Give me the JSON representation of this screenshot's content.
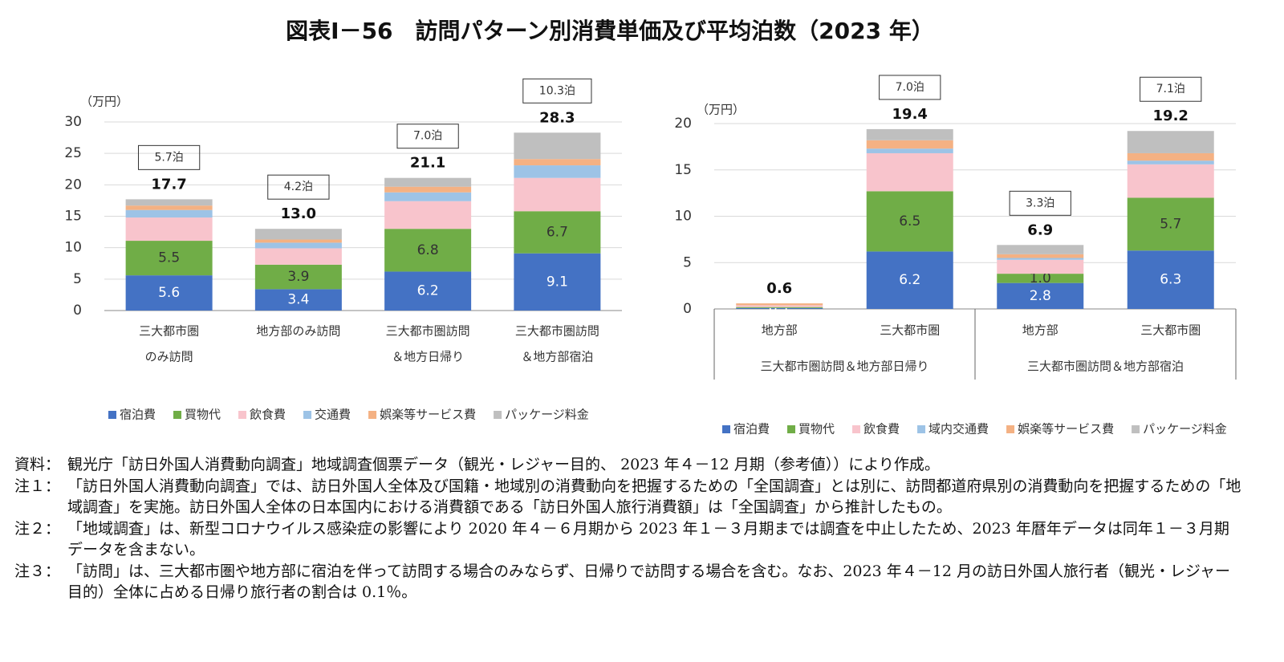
{
  "title": "図表Ⅰ－56　訪問パターン別消費単価及び平均泊数（2023 年）",
  "chart_data": [
    {
      "type": "bar",
      "stacked": true,
      "y_label": "（万円）",
      "grid": true,
      "categories": [
        [
          "三大都市圏",
          "のみ訪問"
        ],
        [
          "地方部のみ訪問"
        ],
        [
          "三大都市圏訪問",
          "＆地方日帰り"
        ],
        [
          "三大都市圏訪問",
          "＆地方部宿泊"
        ]
      ],
      "ylim": [
        0,
        30
      ],
      "yticks": [
        0,
        5,
        10,
        15,
        20,
        25,
        30
      ],
      "series": [
        {
          "name": "宿泊費",
          "color": "#4472c4",
          "values": [
            5.6,
            3.4,
            6.2,
            9.1
          ]
        },
        {
          "name": "買物代",
          "color": "#70ad47",
          "values": [
            5.5,
            3.9,
            6.8,
            6.7
          ]
        },
        {
          "name": "飲食費",
          "color": "#f8c4cc",
          "values": [
            3.7,
            2.6,
            4.4,
            5.3
          ]
        },
        {
          "name": "交通費",
          "color": "#9dc3e6",
          "values": [
            1.2,
            0.9,
            1.4,
            2.0
          ]
        },
        {
          "name": "娯楽等サービス費",
          "color": "#f4b183",
          "values": [
            0.7,
            0.5,
            0.9,
            1.0
          ]
        },
        {
          "name": "パッケージ料金",
          "color": "#bfbfbf",
          "values": [
            1.0,
            1.7,
            1.4,
            4.2
          ]
        }
      ],
      "totals": [
        17.7,
        13.0,
        21.1,
        28.3
      ],
      "total_labels": [
        "17.7",
        "13.0",
        "21.1",
        "28.3"
      ],
      "nights": [
        "5.7泊",
        "4.2泊",
        "7.0泊",
        "10.3泊"
      ]
    },
    {
      "type": "bar",
      "stacked": true,
      "y_label": "（万円）",
      "grid": true,
      "categories": [
        [
          "地方部"
        ],
        [
          "三大都市圏"
        ],
        [
          "地方部"
        ],
        [
          "三大都市圏"
        ]
      ],
      "groups": [
        "三大都市圏訪問＆地方部日帰り",
        "三大都市圏訪問＆地方部宿泊"
      ],
      "ylim": [
        0,
        20
      ],
      "yticks": [
        0,
        5,
        10,
        15,
        20
      ],
      "series": [
        {
          "name": "宿泊費",
          "color": "#4472c4",
          "values": [
            0.1,
            6.2,
            2.8,
            6.3
          ]
        },
        {
          "name": "買物代",
          "color": "#70ad47",
          "values": [
            0.1,
            6.5,
            1.0,
            5.7
          ],
          "value_labels": [
            null,
            "6.5",
            "1.0",
            "5.7"
          ]
        },
        {
          "name": "飲食費",
          "color": "#f8c4cc",
          "values": [
            0.2,
            4.1,
            1.5,
            3.6
          ]
        },
        {
          "name": "域内交通費",
          "color": "#9dc3e6",
          "values": [
            0.0,
            0.5,
            0.2,
            0.4
          ]
        },
        {
          "name": "娯楽等サービス費",
          "color": "#f4b183",
          "values": [
            0.2,
            0.9,
            0.4,
            0.8
          ]
        },
        {
          "name": "パッケージ料金",
          "color": "#bfbfbf",
          "values": [
            0.0,
            1.2,
            1.0,
            2.4
          ]
        }
      ],
      "totals": [
        0.6,
        19.4,
        6.9,
        19.2
      ],
      "total_labels": [
        "0.6",
        "19.4",
        "6.9",
        "19.2"
      ],
      "nights": [
        null,
        "7.0泊",
        "3.3泊",
        "7.1泊"
      ]
    }
  ],
  "notes": [
    {
      "label": "資料：",
      "text": "観光庁「訪日外国人消費動向調査」地域調査個票データ（観光・レジャー目的、 2023 年４－12 月期（参考値））により作成。"
    },
    {
      "label": "注１：",
      "text": "「訪日外国人消費動向調査」では、訪日外国人全体及び国籍・地域別の消費動向を把握するための「全国調査」とは別に、訪問都道府県別の消費動向を把握するための「地域調査」を実施。訪日外国人全体の日本国内における消費額である「訪日外国人旅行消費額」は「全国調査」から推計したもの。"
    },
    {
      "label": "注２：",
      "text": "「地域調査」は、新型コロナウイルス感染症の影響により 2020 年４－６月期から 2023 年１－３月期までは調査を中止したため、2023 年暦年データは同年１－３月期データを含まない。"
    },
    {
      "label": "注３：",
      "text": "「訪問」は、三大都市圏や地方部に宿泊を伴って訪問する場合のみならず、日帰りで訪問する場合を含む。なお、2023 年４－12 月の訪日外国人旅行者（観光・レジャー目的）全体に占める日帰り旅行者の割合は 0.1％。"
    }
  ]
}
